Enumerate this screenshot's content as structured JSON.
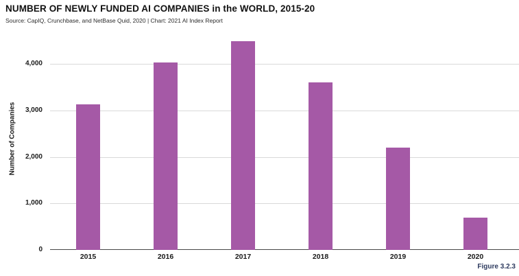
{
  "header": {
    "title": "NUMBER OF NEWLY FUNDED AI COMPANIES in the WORLD, 2015-20",
    "source": "Source: CapIQ, Crunchbase, and NetBase Quid, 2020 | Chart: 2021 AI Index Report"
  },
  "figure_caption": "Figure 3.2.3",
  "chart_data": {
    "type": "bar",
    "title": "NUMBER OF NEWLY FUNDED AI COMPANIES in the WORLD, 2015-20",
    "categories": [
      "2015",
      "2016",
      "2017",
      "2018",
      "2019",
      "2020"
    ],
    "values": [
      3130,
      4030,
      4490,
      3600,
      2200,
      690
    ],
    "xlabel": "",
    "ylabel": "Number of Companies",
    "ylim": [
      0,
      4000
    ],
    "y_ticks": [
      {
        "value": 0,
        "label": "0"
      },
      {
        "value": 1000,
        "label": "1,000"
      },
      {
        "value": 2000,
        "label": "2,000"
      },
      {
        "value": 3000,
        "label": "3,000"
      },
      {
        "value": 4000,
        "label": "4,000"
      }
    ],
    "grid": "horizontal",
    "legend": "none"
  },
  "colors": {
    "bar": "#a559a6",
    "gridline": "#d9d9d9",
    "axis": "#474747",
    "text": "#1a1a1a",
    "caption": "#2d3a5e",
    "background": "#ffffff"
  }
}
